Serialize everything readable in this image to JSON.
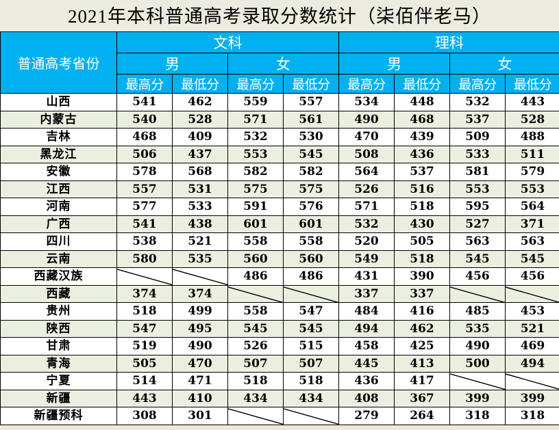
{
  "title": "2021年本科普通高考录取分数统计（柒佰伴老马）",
  "header": {
    "province_label": "普通高考省份",
    "groups": [
      {
        "label": "文科",
        "genders": [
          "男",
          "女"
        ]
      },
      {
        "label": "理科",
        "genders": [
          "男",
          "女"
        ]
      }
    ],
    "metrics": [
      "最高分",
      "最低分",
      "最高分",
      "最低分",
      "最高分",
      "最低分",
      "最高分",
      "最低分"
    ]
  },
  "colors": {
    "header_bg": "#00b0f0",
    "header_text": "#ffffff",
    "alt_row_bg": "#ebefdf",
    "row_bg": "#ffffff"
  },
  "rows": [
    {
      "province": "山西",
      "values": [
        "541",
        "462",
        "559",
        "557",
        "534",
        "448",
        "532",
        "443"
      ]
    },
    {
      "province": "内蒙古",
      "values": [
        "540",
        "528",
        "571",
        "561",
        "490",
        "468",
        "537",
        "528"
      ]
    },
    {
      "province": "吉林",
      "values": [
        "468",
        "409",
        "532",
        "530",
        "470",
        "439",
        "509",
        "488"
      ]
    },
    {
      "province": "黑龙江",
      "values": [
        "506",
        "437",
        "553",
        "545",
        "508",
        "436",
        "533",
        "511"
      ]
    },
    {
      "province": "安徽",
      "values": [
        "578",
        "568",
        "582",
        "582",
        "564",
        "537",
        "581",
        "579"
      ]
    },
    {
      "province": "江西",
      "values": [
        "557",
        "531",
        "575",
        "575",
        "526",
        "516",
        "553",
        "553"
      ]
    },
    {
      "province": "河南",
      "values": [
        "577",
        "533",
        "591",
        "576",
        "571",
        "518",
        "595",
        "564"
      ]
    },
    {
      "province": "广西",
      "values": [
        "541",
        "438",
        "601",
        "601",
        "532",
        "430",
        "527",
        "371"
      ]
    },
    {
      "province": "四川",
      "values": [
        "538",
        "521",
        "558",
        "558",
        "520",
        "505",
        "563",
        "563"
      ]
    },
    {
      "province": "云南",
      "values": [
        "580",
        "535",
        "560",
        "560",
        "549",
        "518",
        "545",
        "545"
      ]
    },
    {
      "province": "西藏汉族",
      "values": [
        null,
        null,
        "486",
        "486",
        "431",
        "390",
        "456",
        "456"
      ]
    },
    {
      "province": "西藏",
      "values": [
        "374",
        "374",
        null,
        null,
        "337",
        "337",
        null,
        null
      ]
    },
    {
      "province": "贵州",
      "values": [
        "518",
        "499",
        "558",
        "547",
        "484",
        "416",
        "485",
        "453"
      ]
    },
    {
      "province": "陕西",
      "values": [
        "547",
        "495",
        "545",
        "545",
        "494",
        "462",
        "535",
        "521"
      ]
    },
    {
      "province": "甘肃",
      "values": [
        "519",
        "490",
        "526",
        "515",
        "458",
        "425",
        "490",
        "469"
      ]
    },
    {
      "province": "青海",
      "values": [
        "505",
        "470",
        "507",
        "507",
        "445",
        "413",
        "500",
        "494"
      ]
    },
    {
      "province": "宁夏",
      "values": [
        "514",
        "471",
        "518",
        "518",
        "436",
        "417",
        null,
        null
      ]
    },
    {
      "province": "新疆",
      "values": [
        "443",
        "410",
        "434",
        "434",
        "408",
        "367",
        "399",
        "399"
      ]
    },
    {
      "province": "新疆预科",
      "values": [
        "308",
        "301",
        null,
        null,
        "279",
        "264",
        "318",
        "318"
      ]
    }
  ]
}
